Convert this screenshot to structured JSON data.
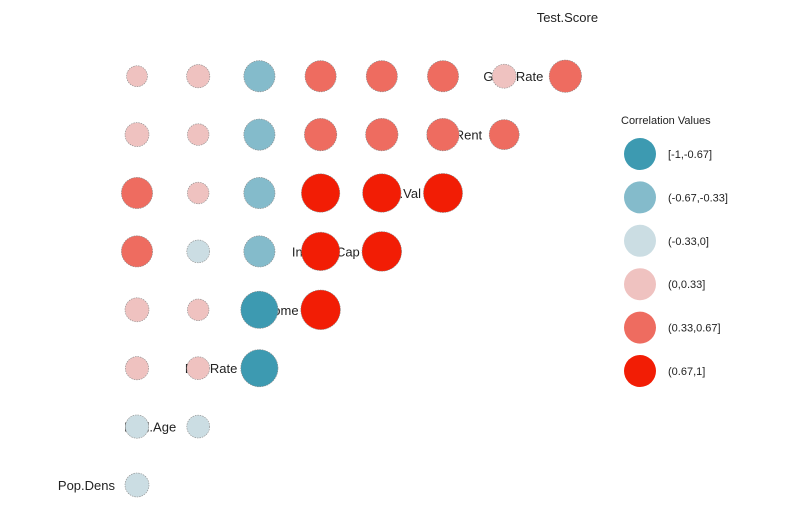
{
  "chart_data": {
    "type": "correlation-matrix",
    "variables": [
      "Pop.Dens",
      "Med.Age",
      "Pov.Rate",
      "Income",
      "Inc.Per.Cap",
      "Home.Val",
      "Med.Rent",
      "Grad.Rate",
      "Test.Score"
    ],
    "correlations": [
      {
        "row": "Med.Age",
        "col": "Pop.Dens",
        "value": -0.25
      },
      {
        "row": "Pov.Rate",
        "col": "Pop.Dens",
        "value": -0.22
      },
      {
        "row": "Pov.Rate",
        "col": "Med.Age",
        "value": -0.2
      },
      {
        "row": "Income",
        "col": "Pop.Dens",
        "value": 0.22
      },
      {
        "row": "Income",
        "col": "Med.Age",
        "value": 0.2
      },
      {
        "row": "Income",
        "col": "Pov.Rate",
        "value": -0.8
      },
      {
        "row": "Inc.Per.Cap",
        "col": "Pop.Dens",
        "value": 0.25
      },
      {
        "row": "Inc.Per.Cap",
        "col": "Med.Age",
        "value": 0.15
      },
      {
        "row": "Inc.Per.Cap",
        "col": "Pov.Rate",
        "value": -0.8
      },
      {
        "row": "Inc.Per.Cap",
        "col": "Income",
        "value": 0.9
      },
      {
        "row": "Home.Val",
        "col": "Pop.Dens",
        "value": 0.55
      },
      {
        "row": "Home.Val",
        "col": "Med.Age",
        "value": -0.2
      },
      {
        "row": "Home.Val",
        "col": "Pov.Rate",
        "value": -0.55
      },
      {
        "row": "Home.Val",
        "col": "Income",
        "value": 0.85
      },
      {
        "row": "Home.Val",
        "col": "Inc.Per.Cap",
        "value": 0.9
      },
      {
        "row": "Med.Rent",
        "col": "Pop.Dens",
        "value": 0.55
      },
      {
        "row": "Med.Rent",
        "col": "Med.Age",
        "value": 0.15
      },
      {
        "row": "Med.Rent",
        "col": "Pov.Rate",
        "value": -0.55
      },
      {
        "row": "Med.Rent",
        "col": "Income",
        "value": 0.85
      },
      {
        "row": "Med.Rent",
        "col": "Inc.Per.Cap",
        "value": 0.85
      },
      {
        "row": "Med.Rent",
        "col": "Home.Val",
        "value": 0.88
      },
      {
        "row": "Grad.Rate",
        "col": "Pop.Dens",
        "value": 0.25
      },
      {
        "row": "Grad.Rate",
        "col": "Med.Age",
        "value": 0.15
      },
      {
        "row": "Grad.Rate",
        "col": "Pov.Rate",
        "value": -0.55
      },
      {
        "row": "Grad.Rate",
        "col": "Income",
        "value": 0.6
      },
      {
        "row": "Grad.Rate",
        "col": "Inc.Per.Cap",
        "value": 0.6
      },
      {
        "row": "Grad.Rate",
        "col": "Home.Val",
        "value": 0.6
      },
      {
        "row": "Grad.Rate",
        "col": "Med.Rent",
        "value": 0.5
      },
      {
        "row": "Test.Score",
        "col": "Pop.Dens",
        "value": 0.12
      },
      {
        "row": "Test.Score",
        "col": "Med.Age",
        "value": 0.22
      },
      {
        "row": "Test.Score",
        "col": "Pov.Rate",
        "value": -0.55
      },
      {
        "row": "Test.Score",
        "col": "Income",
        "value": 0.55
      },
      {
        "row": "Test.Score",
        "col": "Inc.Per.Cap",
        "value": 0.55
      },
      {
        "row": "Test.Score",
        "col": "Home.Val",
        "value": 0.55
      },
      {
        "row": "Test.Score",
        "col": "Med.Rent",
        "value": 0.25
      },
      {
        "row": "Test.Score",
        "col": "Grad.Rate",
        "value": 0.6
      }
    ],
    "legend": {
      "title": "Correlation Values",
      "position": "right",
      "bins": [
        {
          "label": "[-1,-0.67]",
          "color": "#3d9ab1"
        },
        {
          "label": "(-0.67,-0.33]",
          "color": "#84bbcb"
        },
        {
          "label": "(-0.33,0]",
          "color": "#cbdde3"
        },
        {
          "label": "(0,0.33]",
          "color": "#efc2c0"
        },
        {
          "label": "(0.33,0.67]",
          "color": "#ee6c60"
        },
        {
          "label": "(0.67,1]",
          "color": "#f21d05"
        }
      ]
    },
    "grid": false
  }
}
